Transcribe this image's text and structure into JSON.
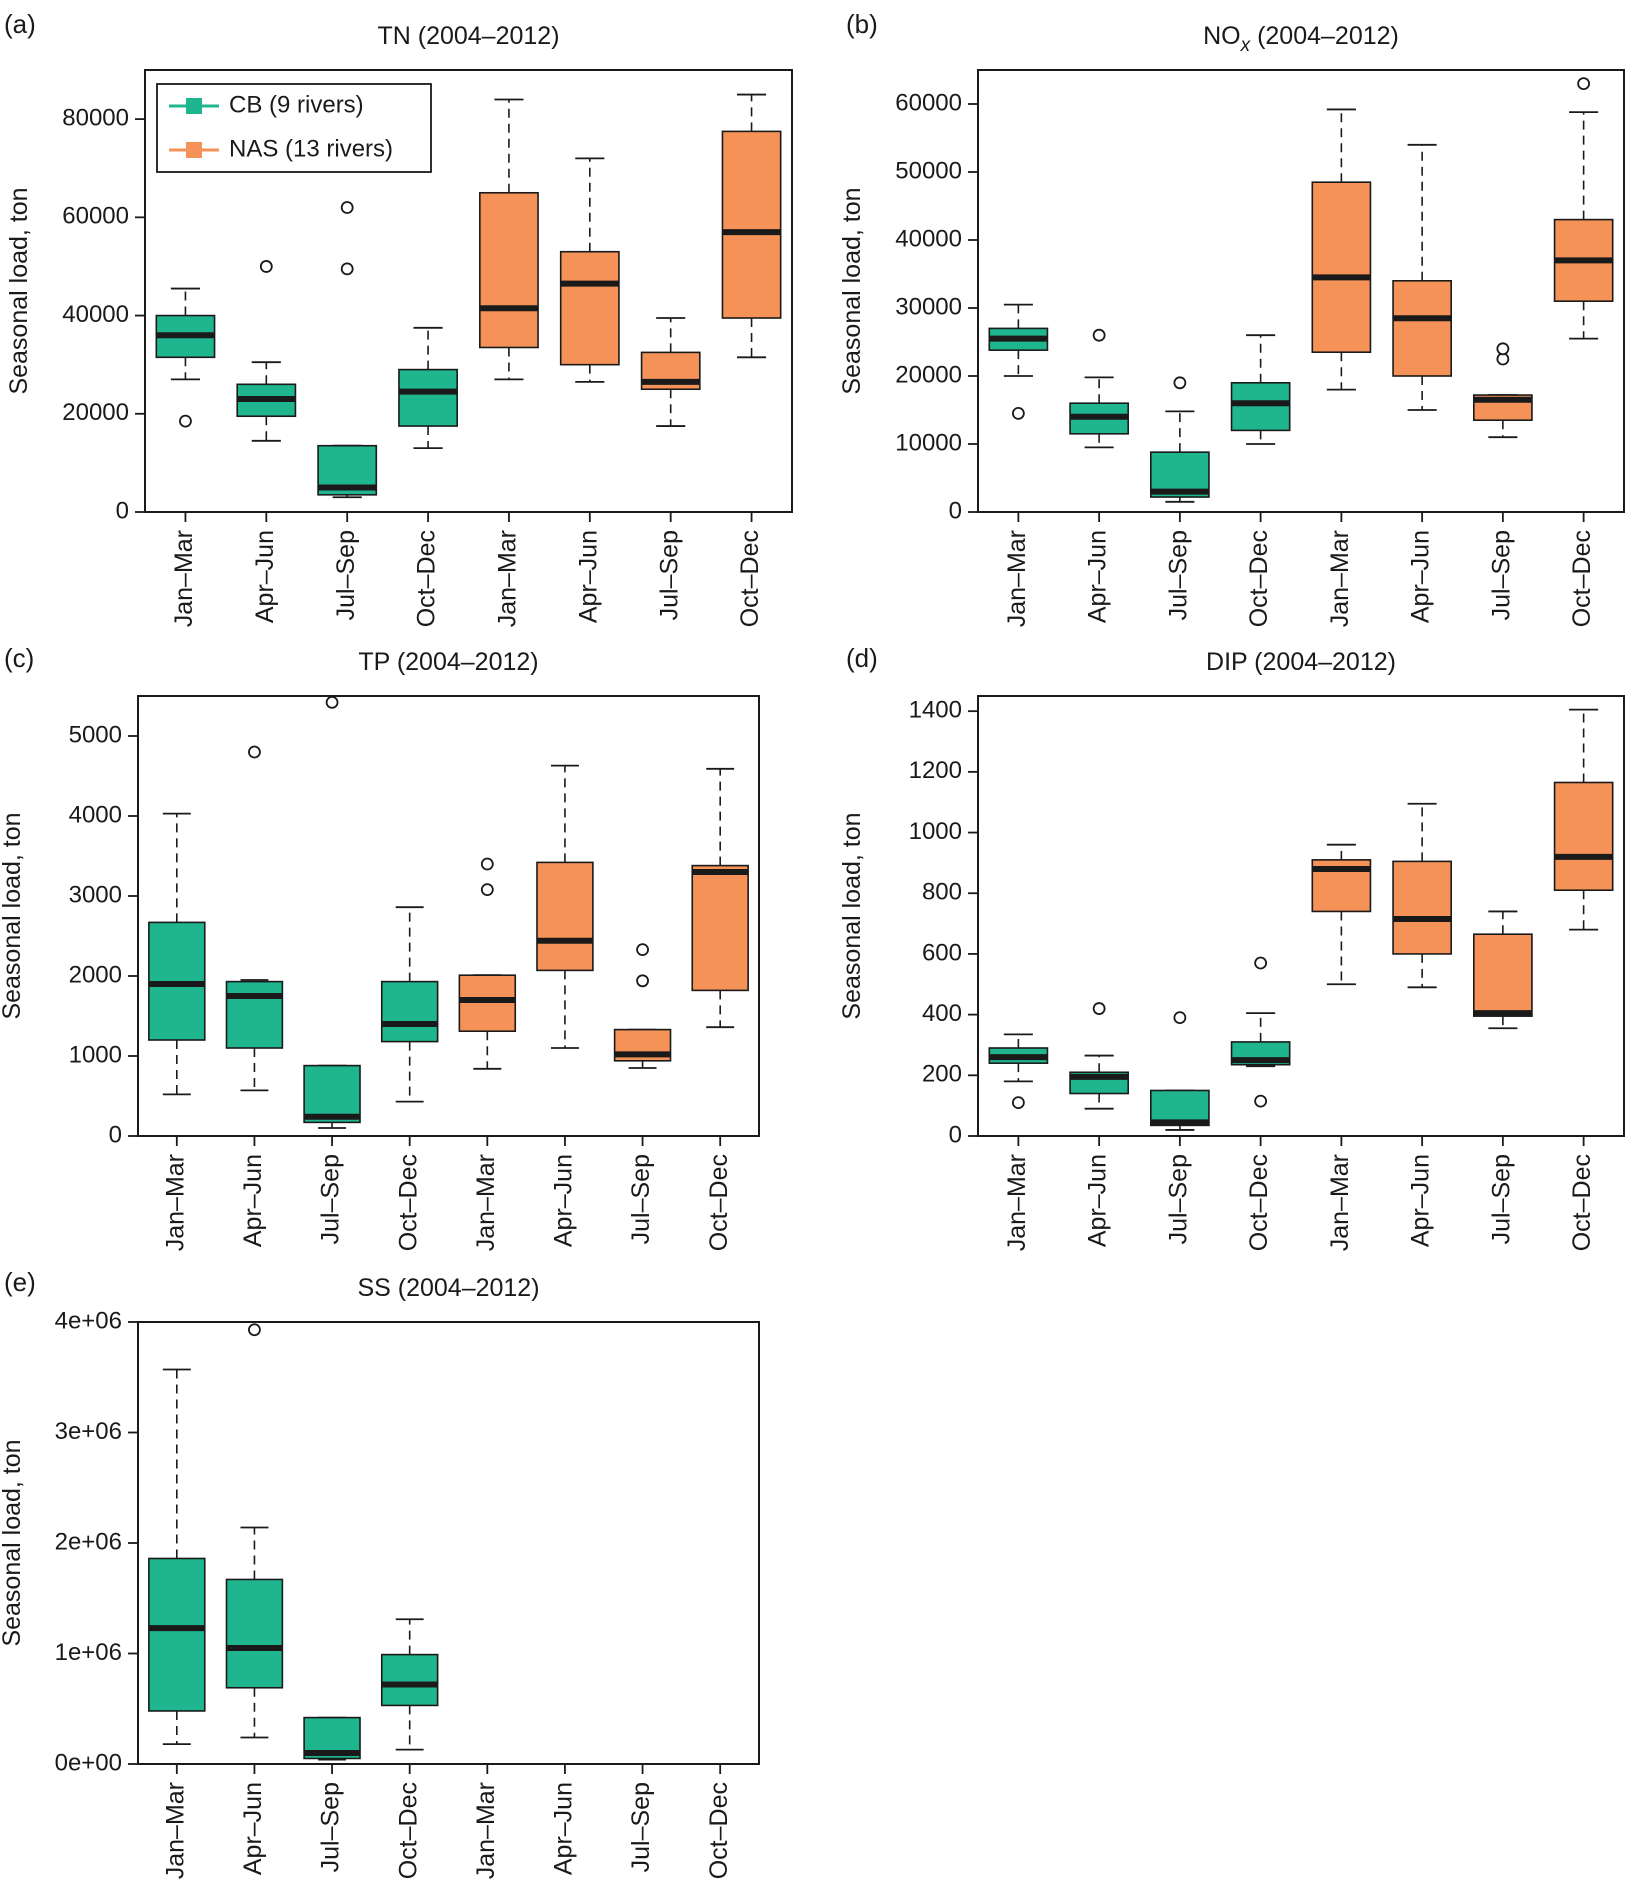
{
  "colors": {
    "cb": "#1fb58f",
    "nas": "#f49258",
    "ink": "#1a1a1a"
  },
  "legend": [
    {
      "label": "CB (9 rivers)",
      "color": "#1fb58f"
    },
    {
      "label": "NAS (13 rivers)",
      "color": "#f49258"
    }
  ],
  "chart_data": [
    {
      "type": "box",
      "panel": "(a)",
      "title": "TN (2004–2012)",
      "ylabel": "Seasonal load, ton",
      "ylim": [
        0,
        90000
      ],
      "yticks": [
        0,
        20000,
        40000,
        60000,
        80000
      ],
      "ytick_labels": [
        "0",
        "20000",
        "40000",
        "60000",
        "80000"
      ],
      "has_legend": true,
      "categories": [
        "Jan–Mar",
        "Apr–Jun",
        "Jul–Sep",
        "Oct–Dec",
        "Jan–Mar",
        "Apr–Jun",
        "Jul–Sep",
        "Oct–Dec"
      ],
      "groups": [
        "CB",
        "CB",
        "CB",
        "CB",
        "NAS",
        "NAS",
        "NAS",
        "NAS"
      ],
      "boxes": [
        {
          "min": 27000,
          "q1": 31500,
          "median": 36000,
          "q3": 40000,
          "max": 45500,
          "outliers": [
            18500
          ]
        },
        {
          "min": 14500,
          "q1": 19500,
          "median": 23000,
          "q3": 26000,
          "max": 30500,
          "outliers": [
            50000
          ]
        },
        {
          "min": 3000,
          "q1": 3500,
          "median": 5000,
          "q3": 13500,
          "max": 13500,
          "outliers": [
            49500,
            62000
          ]
        },
        {
          "min": 13000,
          "q1": 17500,
          "median": 24500,
          "q3": 29000,
          "max": 37500,
          "outliers": []
        },
        {
          "min": 27000,
          "q1": 33500,
          "median": 41500,
          "q3": 65000,
          "max": 84000,
          "outliers": []
        },
        {
          "min": 26500,
          "q1": 30000,
          "median": 46500,
          "q3": 53000,
          "max": 72000,
          "outliers": []
        },
        {
          "min": 17500,
          "q1": 25000,
          "median": 26500,
          "q3": 32500,
          "max": 39500,
          "outliers": []
        },
        {
          "min": 31500,
          "q1": 39500,
          "median": 57000,
          "q3": 77500,
          "max": 85000,
          "outliers": []
        }
      ]
    },
    {
      "type": "box",
      "panel": "(b)",
      "title": "NO",
      "title_sub": "x",
      "title_rest": " (2004–2012)",
      "ylabel": "Seasonal load, ton",
      "ylim": [
        0,
        65000
      ],
      "yticks": [
        0,
        10000,
        20000,
        30000,
        40000,
        50000,
        60000
      ],
      "ytick_labels": [
        "0",
        "10000",
        "20000",
        "30000",
        "40000",
        "50000",
        "60000"
      ],
      "has_legend": false,
      "categories": [
        "Jan–Mar",
        "Apr–Jun",
        "Jul–Sep",
        "Oct–Dec",
        "Jan–Mar",
        "Apr–Jun",
        "Jul–Sep",
        "Oct–Dec"
      ],
      "groups": [
        "CB",
        "CB",
        "CB",
        "CB",
        "NAS",
        "NAS",
        "NAS",
        "NAS"
      ],
      "boxes": [
        {
          "min": 20000,
          "q1": 23800,
          "median": 25500,
          "q3": 27000,
          "max": 30500,
          "outliers": [
            14500
          ]
        },
        {
          "min": 9500,
          "q1": 11500,
          "median": 14000,
          "q3": 16000,
          "max": 19800,
          "outliers": [
            26000
          ]
        },
        {
          "min": 1500,
          "q1": 2200,
          "median": 3000,
          "q3": 8800,
          "max": 14800,
          "outliers": [
            19000
          ]
        },
        {
          "min": 10000,
          "q1": 12000,
          "median": 16000,
          "q3": 19000,
          "max": 26000,
          "outliers": []
        },
        {
          "min": 18000,
          "q1": 23500,
          "median": 34500,
          "q3": 48500,
          "max": 59200,
          "outliers": []
        },
        {
          "min": 15000,
          "q1": 20000,
          "median": 28500,
          "q3": 34000,
          "max": 54000,
          "outliers": []
        },
        {
          "min": 11000,
          "q1": 13500,
          "median": 16500,
          "q3": 17200,
          "max": 17200,
          "outliers": [
            22500,
            24000
          ]
        },
        {
          "min": 25500,
          "q1": 31000,
          "median": 37000,
          "q3": 43000,
          "max": 58800,
          "outliers": [
            63000
          ]
        }
      ]
    },
    {
      "type": "box",
      "panel": "(c)",
      "title": "TP (2004–2012)",
      "ylabel": "Seasonal load, ton",
      "ylim": [
        0,
        5500
      ],
      "yticks": [
        0,
        1000,
        2000,
        3000,
        4000,
        5000
      ],
      "ytick_labels": [
        "0",
        "1000",
        "2000",
        "3000",
        "4000",
        "5000"
      ],
      "has_legend": false,
      "categories": [
        "Jan–Mar",
        "Apr–Jun",
        "Jul–Sep",
        "Oct–Dec",
        "Jan–Mar",
        "Apr–Jun",
        "Jul–Sep",
        "Oct–Dec"
      ],
      "groups": [
        "CB",
        "CB",
        "CB",
        "CB",
        "NAS",
        "NAS",
        "NAS",
        "NAS"
      ],
      "boxes": [
        {
          "min": 520,
          "q1": 1200,
          "median": 1900,
          "q3": 2670,
          "max": 4030,
          "outliers": []
        },
        {
          "min": 570,
          "q1": 1100,
          "median": 1750,
          "q3": 1930,
          "max": 1950,
          "outliers": [
            4800
          ]
        },
        {
          "min": 100,
          "q1": 170,
          "median": 240,
          "q3": 880,
          "max": 880,
          "outliers": [
            5420
          ]
        },
        {
          "min": 430,
          "q1": 1180,
          "median": 1400,
          "q3": 1930,
          "max": 2860,
          "outliers": []
        },
        {
          "min": 840,
          "q1": 1310,
          "median": 1700,
          "q3": 2010,
          "max": 2010,
          "outliers": [
            3080,
            3400
          ]
        },
        {
          "min": 1100,
          "q1": 2070,
          "median": 2440,
          "q3": 3420,
          "max": 4630,
          "outliers": []
        },
        {
          "min": 850,
          "q1": 940,
          "median": 1020,
          "q3": 1330,
          "max": 1330,
          "outliers": [
            1940,
            2330
          ]
        },
        {
          "min": 1360,
          "q1": 1820,
          "median": 3300,
          "q3": 3380,
          "max": 4590,
          "outliers": []
        }
      ]
    },
    {
      "type": "box",
      "panel": "(d)",
      "title": "DIP (2004–2012)",
      "ylabel": "Seasonal load, ton",
      "ylim": [
        0,
        1450
      ],
      "yticks": [
        0,
        200,
        400,
        600,
        800,
        1000,
        1200,
        1400
      ],
      "ytick_labels": [
        "0",
        "200",
        "400",
        "600",
        "800",
        "1000",
        "1200",
        "1400"
      ],
      "has_legend": false,
      "categories": [
        "Jan–Mar",
        "Apr–Jun",
        "Jul–Sep",
        "Oct–Dec",
        "Jan–Mar",
        "Apr–Jun",
        "Jul–Sep",
        "Oct–Dec"
      ],
      "groups": [
        "CB",
        "CB",
        "CB",
        "CB",
        "NAS",
        "NAS",
        "NAS",
        "NAS"
      ],
      "boxes": [
        {
          "min": 180,
          "q1": 240,
          "median": 260,
          "q3": 290,
          "max": 335,
          "outliers": [
            110
          ]
        },
        {
          "min": 90,
          "q1": 140,
          "median": 195,
          "q3": 210,
          "max": 265,
          "outliers": [
            420
          ]
        },
        {
          "min": 20,
          "q1": 35,
          "median": 45,
          "q3": 150,
          "max": 150,
          "outliers": [
            390
          ]
        },
        {
          "min": 230,
          "q1": 235,
          "median": 250,
          "q3": 310,
          "max": 405,
          "outliers": [
            115,
            570
          ]
        },
        {
          "min": 500,
          "q1": 740,
          "median": 880,
          "q3": 910,
          "max": 960,
          "outliers": []
        },
        {
          "min": 490,
          "q1": 600,
          "median": 715,
          "q3": 905,
          "max": 1095,
          "outliers": []
        },
        {
          "min": 355,
          "q1": 395,
          "median": 405,
          "q3": 665,
          "max": 740,
          "outliers": []
        },
        {
          "min": 680,
          "q1": 810,
          "median": 920,
          "q3": 1165,
          "max": 1405,
          "outliers": []
        }
      ]
    },
    {
      "type": "box",
      "panel": "(e)",
      "title": "SS (2004–2012)",
      "ylabel": "Seasonal load, ton",
      "ylim": [
        0,
        4000000
      ],
      "yticks": [
        0,
        1000000,
        2000000,
        3000000,
        4000000
      ],
      "ytick_labels": [
        "0e+00",
        "1e+06",
        "2e+06",
        "3e+06",
        "4e+06"
      ],
      "has_legend": false,
      "categories": [
        "Jan–Mar",
        "Apr–Jun",
        "Jul–Sep",
        "Oct–Dec",
        "Jan–Mar",
        "Apr–Jun",
        "Jul–Sep",
        "Oct–Dec"
      ],
      "groups": [
        "CB",
        "CB",
        "CB",
        "CB",
        "NAS",
        "NAS",
        "NAS",
        "NAS"
      ],
      "boxes": [
        {
          "min": 180000,
          "q1": 480000,
          "median": 1230000,
          "q3": 1860000,
          "max": 3570000,
          "outliers": []
        },
        {
          "min": 240000,
          "q1": 690000,
          "median": 1050000,
          "q3": 1670000,
          "max": 2140000,
          "outliers": [
            3930000
          ]
        },
        {
          "min": 40000,
          "q1": 50000,
          "median": 100000,
          "q3": 420000,
          "max": 420000,
          "outliers": []
        },
        {
          "min": 130000,
          "q1": 530000,
          "median": 720000,
          "q3": 990000,
          "max": 1310000,
          "outliers": []
        },
        null,
        null,
        null,
        null
      ]
    }
  ]
}
